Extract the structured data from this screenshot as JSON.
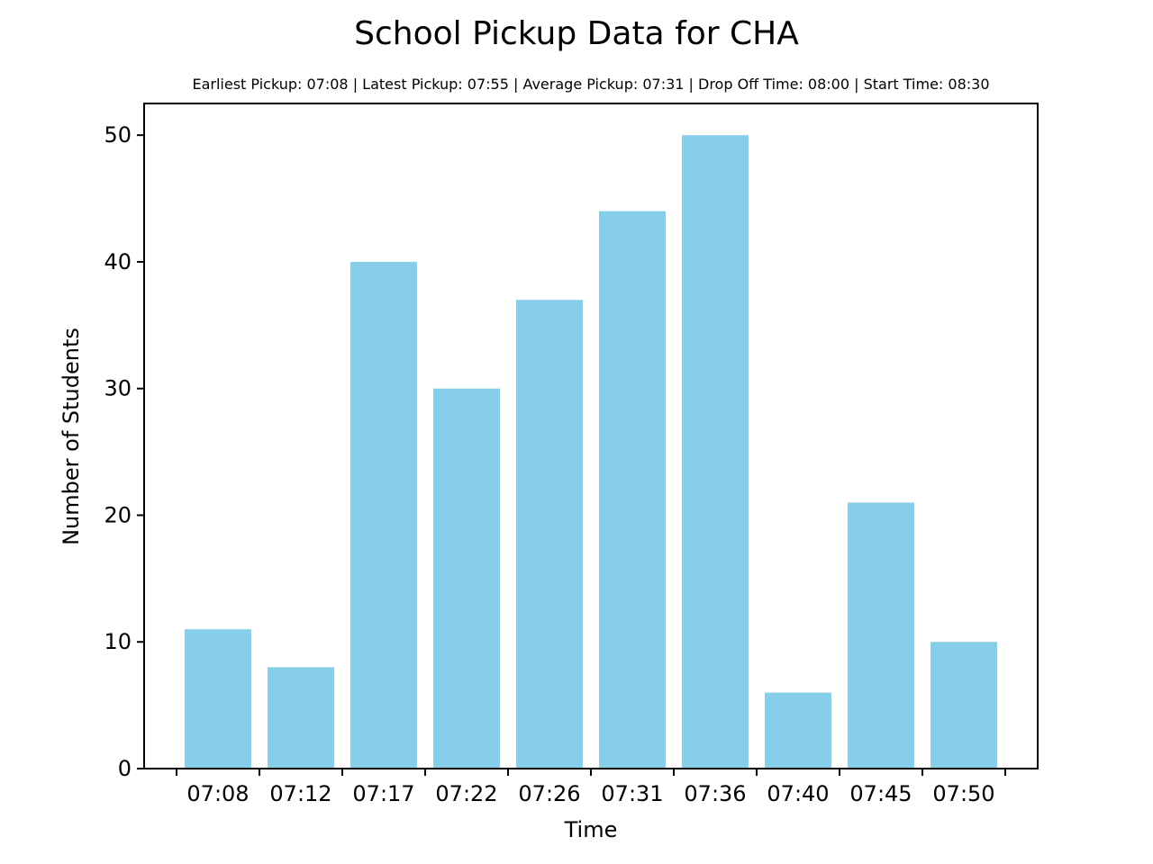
{
  "chart_data": {
    "type": "bar",
    "title": "School Pickup Data for CHA",
    "subtitle": "Earliest Pickup: 07:08 | Latest Pickup: 07:55 | Average Pickup: 07:31 | Drop Off Time: 08:00 | Start Time: 08:30",
    "xlabel": "Time",
    "ylabel": "Number of Students",
    "categories": [
      "07:08",
      "07:12",
      "07:17",
      "07:22",
      "07:26",
      "07:31",
      "07:36",
      "07:40",
      "07:45",
      "07:50"
    ],
    "extra_tick_count": 1,
    "values": [
      11,
      8,
      40,
      30,
      37,
      44,
      50,
      6,
      21,
      10
    ],
    "ylim": [
      0,
      52.5
    ],
    "yticks": [
      0,
      10,
      20,
      30,
      40,
      50
    ],
    "bar_color": "#87CEEB",
    "grid": false,
    "legend": false
  }
}
